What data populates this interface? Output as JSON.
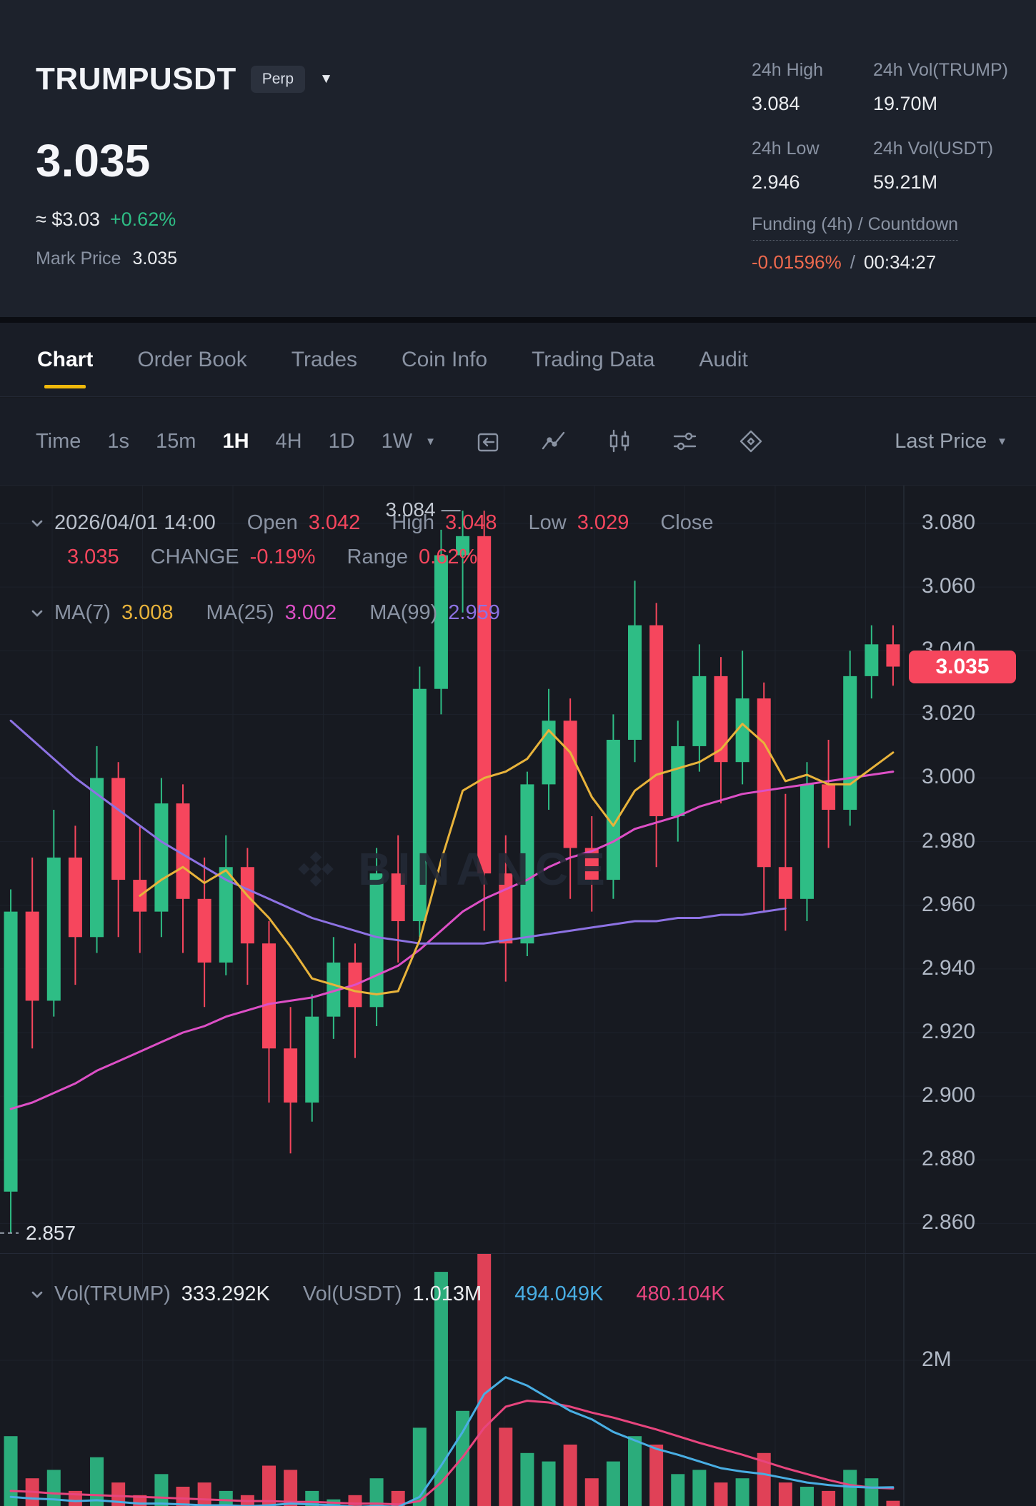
{
  "header": {
    "symbol": "TRUMPUSDT",
    "contract_type": "Perp",
    "last_price": "3.035",
    "approx_usd": "≈ $3.03",
    "change_percent": "+0.62%",
    "mark_price_label": "Mark Price",
    "mark_price": "3.035",
    "stats": {
      "high_label": "24h High",
      "high": "3.084",
      "low_label": "24h Low",
      "low": "2.946",
      "vol_base_label": "24h Vol(TRUMP)",
      "vol_base": "19.70M",
      "vol_quote_label": "24h Vol(USDT)",
      "vol_quote": "59.21M",
      "funding_label": "Funding (4h) / Countdown",
      "funding_rate": "-0.01596%",
      "separator": "/",
      "countdown": "00:34:27"
    }
  },
  "tabs": {
    "items": [
      {
        "label": "Chart",
        "active": true
      },
      {
        "label": "Order Book"
      },
      {
        "label": "Trades"
      },
      {
        "label": "Coin Info"
      },
      {
        "label": "Trading Data"
      },
      {
        "label": "Audit"
      }
    ]
  },
  "toolbar": {
    "time_label": "Time",
    "intervals": [
      {
        "label": "1s"
      },
      {
        "label": "15m"
      },
      {
        "label": "1H",
        "active": true
      },
      {
        "label": "4H"
      },
      {
        "label": "1D"
      },
      {
        "label": "1W"
      }
    ],
    "icons": [
      "jump-to-date-icon",
      "line-chart-style-icon",
      "candlestick-style-icon",
      "indicators-icon",
      "diamond-overlay-icon"
    ],
    "price_mode": "Last Price"
  },
  "chart_legend": {
    "datetime": "2026/04/01 14:00",
    "open_label": "Open",
    "open": "3.042",
    "high_label": "High",
    "high": "3.048",
    "low_label": "Low",
    "low": "3.029",
    "close_label": "Close",
    "close": "3.035",
    "change_label": "CHANGE",
    "change": "-0.19%",
    "range_label": "Range",
    "range": "0.62%",
    "ma7_label": "MA(7)",
    "ma7": "3.008",
    "ma25_label": "MA(25)",
    "ma25": "3.002",
    "ma99_label": "MA(99)",
    "ma99": "2.959"
  },
  "volume_legend": {
    "vol_base_label": "Vol(TRUMP)",
    "vol_base": "333.292K",
    "vol_quote_label": "Vol(USDT)",
    "vol_quote": "1.013M",
    "vol_ma1": "494.049K",
    "vol_ma2": "480.104K"
  },
  "price_badge": "3.035",
  "annotations": {
    "high_marker": "3.084",
    "low_marker": "2.857"
  },
  "watermark": "BINANCE",
  "colors": {
    "up": "#2EBD85",
    "down": "#F6465D",
    "accent": "#F0B90B",
    "ma7": "#E8B33B",
    "ma25": "#DD4FC6",
    "ma99": "#8D72E3",
    "vol_ma_fast": "#49AEE3",
    "vol_ma_slow": "#E8457E",
    "funding_negative": "#EF6A4E",
    "badge": "#F6465D"
  },
  "chart_data": {
    "type": "candlestick",
    "symbol": "TRUMPUSDT",
    "interval": "1H",
    "last_datetime": "2026/04/01 14:00",
    "price_axis_ticks": [
      "3.080",
      "3.060",
      "3.040",
      "3.020",
      "3.000",
      "2.980",
      "2.960",
      "2.940",
      "2.920",
      "2.900",
      "2.880",
      "2.860"
    ],
    "volume_axis_tick": {
      "label": "2M",
      "value": 2
    },
    "high_price": 3.084,
    "low_price": 2.857,
    "last_price": 3.035,
    "high_marker_index": 21,
    "low_marker_index": 0,
    "candles": [
      [
        2.87,
        2.965,
        2.857,
        2.958,
        1.1
      ],
      [
        2.958,
        2.975,
        2.915,
        2.93,
        0.6
      ],
      [
        2.93,
        2.99,
        2.925,
        2.975,
        0.7
      ],
      [
        2.975,
        2.985,
        2.935,
        2.95,
        0.45
      ],
      [
        2.95,
        3.01,
        2.945,
        3.0,
        0.85
      ],
      [
        3.0,
        3.005,
        2.95,
        2.968,
        0.55
      ],
      [
        2.968,
        2.985,
        2.945,
        2.958,
        0.4
      ],
      [
        2.958,
        3.0,
        2.95,
        2.992,
        0.65
      ],
      [
        2.992,
        2.998,
        2.945,
        2.962,
        0.5
      ],
      [
        2.962,
        2.975,
        2.928,
        2.942,
        0.55
      ],
      [
        2.942,
        2.982,
        2.938,
        2.972,
        0.45
      ],
      [
        2.972,
        2.978,
        2.935,
        2.948,
        0.4
      ],
      [
        2.948,
        2.955,
        2.898,
        2.915,
        0.75
      ],
      [
        2.915,
        2.928,
        2.882,
        2.898,
        0.7
      ],
      [
        2.898,
        2.932,
        2.892,
        2.925,
        0.45
      ],
      [
        2.925,
        2.95,
        2.918,
        2.942,
        0.35
      ],
      [
        2.942,
        2.948,
        2.912,
        2.928,
        0.4
      ],
      [
        2.928,
        2.978,
        2.922,
        2.97,
        0.6
      ],
      [
        2.97,
        2.982,
        2.942,
        2.955,
        0.45
      ],
      [
        2.955,
        3.035,
        2.95,
        3.028,
        1.2
      ],
      [
        3.028,
        3.078,
        3.02,
        3.07,
        3.05
      ],
      [
        3.07,
        3.084,
        3.052,
        3.076,
        1.4
      ],
      [
        3.076,
        3.084,
        2.952,
        2.97,
        3.3
      ],
      [
        2.97,
        2.982,
        2.936,
        2.948,
        1.2
      ],
      [
        2.948,
        3.002,
        2.944,
        2.998,
        0.9
      ],
      [
        2.998,
        3.028,
        2.99,
        3.018,
        0.8
      ],
      [
        3.018,
        3.025,
        2.962,
        2.978,
        1.0
      ],
      [
        2.978,
        2.988,
        2.958,
        2.968,
        0.6
      ],
      [
        2.968,
        3.02,
        2.962,
        3.012,
        0.8
      ],
      [
        3.012,
        3.062,
        3.005,
        3.048,
        1.1
      ],
      [
        3.048,
        3.055,
        2.972,
        2.988,
        1.0
      ],
      [
        2.988,
        3.018,
        2.98,
        3.01,
        0.65
      ],
      [
        3.01,
        3.042,
        3.002,
        3.032,
        0.7
      ],
      [
        3.032,
        3.038,
        2.992,
        3.005,
        0.55
      ],
      [
        3.005,
        3.04,
        2.998,
        3.025,
        0.6
      ],
      [
        3.025,
        3.03,
        2.958,
        2.972,
        0.9
      ],
      [
        2.972,
        2.995,
        2.952,
        2.962,
        0.55
      ],
      [
        2.962,
        3.005,
        2.955,
        2.998,
        0.5
      ],
      [
        2.998,
        3.012,
        2.978,
        2.99,
        0.45
      ],
      [
        2.99,
        3.04,
        2.985,
        3.032,
        0.7
      ],
      [
        3.032,
        3.048,
        3.025,
        3.042,
        0.6
      ],
      [
        3.042,
        3.048,
        3.029,
        3.035,
        0.333
      ]
    ],
    "ma7": [
      null,
      null,
      null,
      null,
      null,
      null,
      2.963,
      2.968,
      2.972,
      2.967,
      2.971,
      2.963,
      2.956,
      2.947,
      2.937,
      2.935,
      2.933,
      2.932,
      2.933,
      2.949,
      2.974,
      2.996,
      3.0,
      3.002,
      3.006,
      3.015,
      3.008,
      2.994,
      2.985,
      2.996,
      3.001,
      3.003,
      3.005,
      3.009,
      3.017,
      3.011,
      2.999,
      3.001,
      2.998,
      2.998,
      3.003,
      3.008
    ],
    "ma25": [
      2.896,
      2.898,
      2.901,
      2.904,
      2.908,
      2.911,
      2.914,
      2.917,
      2.92,
      2.922,
      2.925,
      2.927,
      2.929,
      2.93,
      2.931,
      2.933,
      2.935,
      2.938,
      2.941,
      2.946,
      2.952,
      2.958,
      2.962,
      2.965,
      2.968,
      2.972,
      2.975,
      2.977,
      2.98,
      2.984,
      2.986,
      2.988,
      2.991,
      2.993,
      2.995,
      2.996,
      2.997,
      2.998,
      2.999,
      3.0,
      3.001,
      3.002
    ],
    "ma99": [
      3.018,
      3.012,
      3.006,
      3.0,
      2.995,
      2.99,
      2.985,
      2.98,
      2.976,
      2.972,
      2.968,
      2.965,
      2.962,
      2.959,
      2.956,
      2.954,
      2.952,
      2.95,
      2.949,
      2.948,
      2.948,
      2.948,
      2.948,
      2.949,
      2.95,
      2.951,
      2.952,
      2.953,
      2.954,
      2.955,
      2.955,
      2.956,
      2.956,
      2.957,
      2.957,
      2.958,
      2.959,
      null,
      null,
      null,
      null,
      null
    ],
    "vol_ma_fast": [
      0.38,
      0.36,
      0.35,
      0.33,
      0.34,
      0.32,
      0.3,
      0.3,
      0.29,
      0.28,
      0.28,
      0.27,
      0.28,
      0.3,
      0.29,
      0.28,
      0.26,
      0.27,
      0.26,
      0.38,
      0.75,
      1.15,
      1.6,
      1.8,
      1.7,
      1.55,
      1.4,
      1.3,
      1.15,
      1.05,
      0.95,
      0.88,
      0.8,
      0.72,
      0.68,
      0.65,
      0.6,
      0.55,
      0.52,
      0.5,
      0.49,
      0.494
    ],
    "vol_ma_slow": [
      0.45,
      0.44,
      0.42,
      0.41,
      0.4,
      0.39,
      0.38,
      0.37,
      0.36,
      0.35,
      0.34,
      0.33,
      0.33,
      0.32,
      0.32,
      0.31,
      0.3,
      0.3,
      0.29,
      0.33,
      0.55,
      0.85,
      1.2,
      1.45,
      1.52,
      1.5,
      1.45,
      1.38,
      1.32,
      1.25,
      1.18,
      1.1,
      1.02,
      0.95,
      0.88,
      0.8,
      0.72,
      0.65,
      0.58,
      0.52,
      0.49,
      0.48
    ]
  }
}
